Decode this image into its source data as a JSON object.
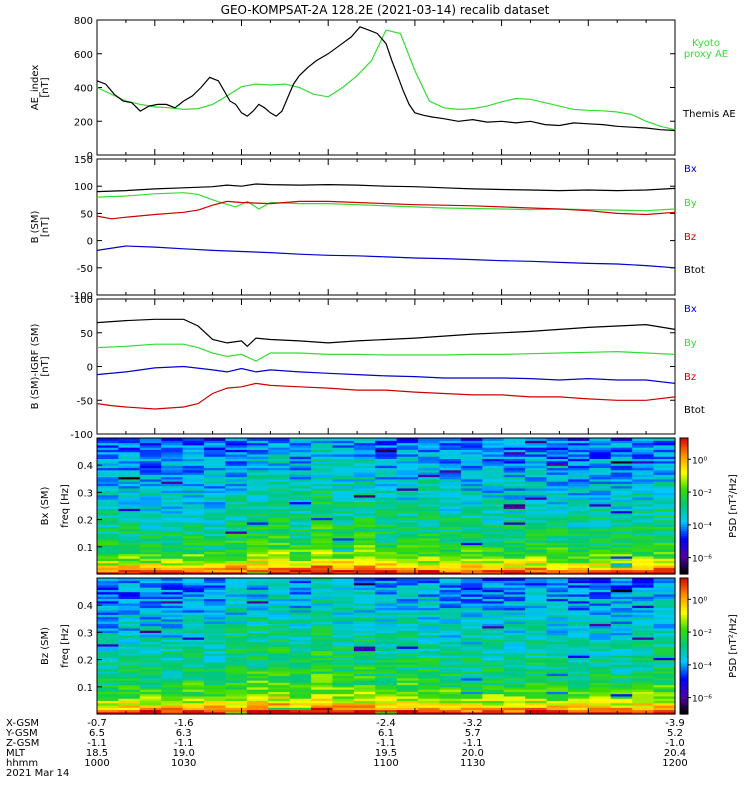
{
  "title": "GEO-KOMPSAT-2A 128.2E (2021-03-14) recalib dataset",
  "colors": {
    "black": "#000000",
    "green": "#33dd33",
    "red": "#cc0000",
    "blue": "#0000cc"
  },
  "colorbar": {
    "label": "PSD [nT²/Hz]",
    "ticks": [
      "10⁰",
      "10⁻²",
      "10⁻⁴",
      "10⁻⁶"
    ],
    "range_log10": [
      -7,
      1.3
    ]
  },
  "chart_data": [
    {
      "type": "line",
      "ylabel": "AE_index [nT]",
      "ylim": [
        0,
        800
      ],
      "yticks": [
        "0",
        "200",
        "400",
        "600",
        "800"
      ],
      "xlim": [
        1000,
        1200
      ],
      "legend": [
        {
          "label": "Kyoto proxy AE",
          "color": "#33dd33"
        },
        {
          "label": "Themis AE",
          "color": "#000000"
        }
      ],
      "series": [
        {
          "name": "Kyoto proxy AE",
          "color": "#33dd33",
          "x": [
            1000,
            1005,
            1010,
            1015,
            1020,
            1025,
            1030,
            1035,
            1040,
            1045,
            1050,
            1055,
            1060,
            1065,
            1070,
            1075,
            1080,
            1085,
            1090,
            1095,
            1100,
            1105,
            1110,
            1115,
            1120,
            1125,
            1130,
            1135,
            1140,
            1145,
            1150,
            1155,
            1160,
            1165,
            1170,
            1175,
            1180,
            1185,
            1190,
            1195,
            1200
          ],
          "y": [
            400,
            360,
            320,
            300,
            285,
            280,
            270,
            275,
            300,
            350,
            405,
            420,
            415,
            420,
            400,
            360,
            345,
            400,
            470,
            560,
            740,
            720,
            500,
            320,
            280,
            270,
            275,
            290,
            315,
            335,
            330,
            310,
            290,
            270,
            265,
            262,
            255,
            240,
            200,
            170,
            150
          ]
        },
        {
          "name": "Themis AE",
          "color": "#000000",
          "x": [
            1000,
            1003,
            1006,
            1009,
            1012,
            1015,
            1018,
            1021,
            1024,
            1027,
            1030,
            1033,
            1036,
            1039,
            1042,
            1044,
            1046,
            1048,
            1050,
            1052,
            1054,
            1056,
            1058,
            1060,
            1062,
            1064,
            1066,
            1068,
            1070,
            1073,
            1076,
            1080,
            1084,
            1088,
            1091,
            1094,
            1097,
            1100,
            1102,
            1104,
            1106,
            1108,
            1110,
            1113,
            1116,
            1120,
            1125,
            1130,
            1135,
            1140,
            1145,
            1150,
            1155,
            1160,
            1165,
            1170,
            1175,
            1180,
            1185,
            1190,
            1195,
            1200
          ],
          "y": [
            440,
            420,
            360,
            320,
            310,
            260,
            290,
            300,
            300,
            280,
            320,
            350,
            400,
            460,
            440,
            380,
            320,
            300,
            250,
            230,
            260,
            300,
            280,
            250,
            230,
            260,
            340,
            420,
            470,
            520,
            560,
            600,
            650,
            700,
            760,
            740,
            720,
            660,
            560,
            470,
            380,
            300,
            250,
            235,
            225,
            215,
            200,
            210,
            195,
            200,
            190,
            200,
            180,
            175,
            190,
            185,
            180,
            170,
            165,
            160,
            150,
            145
          ]
        }
      ]
    },
    {
      "type": "line",
      "ylabel": "B (SM) [nT]",
      "ylim": [
        -100,
        150
      ],
      "yticks": [
        "-100",
        "-50",
        "0",
        "50",
        "100",
        "150"
      ],
      "xlim": [
        1000,
        1200
      ],
      "legend": [
        {
          "label": "Bx",
          "color": "#0000cc"
        },
        {
          "label": "By",
          "color": "#33dd33"
        },
        {
          "label": "Bz",
          "color": "#cc0000"
        },
        {
          "label": "Btot",
          "color": "#000000"
        }
      ],
      "series": [
        {
          "name": "Btot",
          "color": "#000000",
          "x": [
            1000,
            1010,
            1020,
            1030,
            1040,
            1045,
            1050,
            1055,
            1060,
            1070,
            1080,
            1090,
            1100,
            1110,
            1120,
            1130,
            1140,
            1150,
            1160,
            1170,
            1180,
            1190,
            1200
          ],
          "y": [
            90,
            92,
            95,
            97,
            99,
            102,
            100,
            104,
            103,
            102,
            103,
            102,
            100,
            99,
            97,
            95,
            94,
            93,
            92,
            93,
            92,
            93,
            96
          ]
        },
        {
          "name": "By",
          "color": "#33dd33",
          "x": [
            1000,
            1010,
            1020,
            1030,
            1035,
            1040,
            1044,
            1048,
            1052,
            1056,
            1060,
            1070,
            1080,
            1090,
            1100,
            1110,
            1120,
            1130,
            1140,
            1150,
            1160,
            1170,
            1180,
            1190,
            1200
          ],
          "y": [
            80,
            82,
            86,
            88,
            85,
            75,
            68,
            62,
            72,
            58,
            70,
            68,
            68,
            66,
            64,
            62,
            60,
            59,
            58,
            57,
            58,
            57,
            56,
            55,
            58
          ]
        },
        {
          "name": "Bz",
          "color": "#cc0000",
          "x": [
            1000,
            1005,
            1010,
            1020,
            1030,
            1035,
            1040,
            1045,
            1050,
            1060,
            1070,
            1080,
            1090,
            1100,
            1110,
            1120,
            1130,
            1140,
            1150,
            1160,
            1170,
            1180,
            1190,
            1200
          ],
          "y": [
            45,
            40,
            43,
            48,
            52,
            56,
            65,
            72,
            70,
            68,
            72,
            72,
            70,
            68,
            66,
            65,
            64,
            62,
            60,
            58,
            55,
            50,
            48,
            52
          ]
        },
        {
          "name": "Bx",
          "color": "#0000cc",
          "x": [
            1000,
            1010,
            1020,
            1030,
            1040,
            1050,
            1060,
            1070,
            1080,
            1090,
            1100,
            1110,
            1120,
            1130,
            1140,
            1150,
            1160,
            1170,
            1180,
            1190,
            1200
          ],
          "y": [
            -18,
            -10,
            -12,
            -15,
            -18,
            -20,
            -22,
            -25,
            -27,
            -28,
            -30,
            -32,
            -33,
            -35,
            -37,
            -38,
            -40,
            -42,
            -43,
            -46,
            -50
          ]
        }
      ]
    },
    {
      "type": "line",
      "ylabel": "B (SM)-IGRF (SM) [nT]",
      "ylim": [
        -100,
        100
      ],
      "yticks": [
        "-100",
        "-50",
        "0",
        "50",
        "100"
      ],
      "xlim": [
        1000,
        1200
      ],
      "legend": [
        {
          "label": "Bx",
          "color": "#0000cc"
        },
        {
          "label": "By",
          "color": "#33dd33"
        },
        {
          "label": "Bz",
          "color": "#cc0000"
        },
        {
          "label": "Btot",
          "color": "#000000"
        }
      ],
      "series": [
        {
          "name": "Btot",
          "color": "#000000",
          "x": [
            1000,
            1010,
            1020,
            1030,
            1035,
            1040,
            1045,
            1050,
            1052,
            1055,
            1060,
            1070,
            1080,
            1090,
            1100,
            1110,
            1120,
            1130,
            1140,
            1150,
            1160,
            1170,
            1180,
            1190,
            1200
          ],
          "y": [
            65,
            68,
            70,
            70,
            60,
            40,
            35,
            38,
            30,
            42,
            40,
            38,
            35,
            38,
            40,
            42,
            45,
            48,
            50,
            52,
            55,
            58,
            60,
            62,
            55
          ]
        },
        {
          "name": "By",
          "color": "#33dd33",
          "x": [
            1000,
            1010,
            1020,
            1030,
            1035,
            1040,
            1045,
            1050,
            1055,
            1060,
            1070,
            1080,
            1090,
            1100,
            1110,
            1120,
            1130,
            1140,
            1150,
            1160,
            1170,
            1180,
            1190,
            1200
          ],
          "y": [
            28,
            30,
            33,
            33,
            28,
            20,
            15,
            18,
            8,
            20,
            20,
            18,
            18,
            17,
            17,
            17,
            18,
            18,
            19,
            20,
            21,
            22,
            20,
            18
          ]
        },
        {
          "name": "Bx",
          "color": "#0000cc",
          "x": [
            1000,
            1010,
            1020,
            1030,
            1040,
            1045,
            1050,
            1055,
            1060,
            1070,
            1080,
            1090,
            1100,
            1110,
            1120,
            1130,
            1140,
            1150,
            1160,
            1170,
            1180,
            1190,
            1200
          ],
          "y": [
            -12,
            -8,
            -2,
            0,
            -5,
            -8,
            -3,
            -8,
            -5,
            -8,
            -10,
            -12,
            -14,
            -15,
            -17,
            -17,
            -17,
            -18,
            -20,
            -18,
            -20,
            -20,
            -25
          ]
        },
        {
          "name": "Bz",
          "color": "#cc0000",
          "x": [
            1000,
            1005,
            1010,
            1020,
            1030,
            1035,
            1040,
            1045,
            1050,
            1055,
            1060,
            1070,
            1080,
            1090,
            1100,
            1110,
            1120,
            1130,
            1140,
            1150,
            1160,
            1170,
            1180,
            1190,
            1200
          ],
          "y": [
            -55,
            -58,
            -60,
            -63,
            -60,
            -55,
            -40,
            -32,
            -30,
            -25,
            -28,
            -30,
            -32,
            -35,
            -35,
            -38,
            -40,
            -42,
            -42,
            -45,
            -45,
            -48,
            -50,
            -50,
            -45
          ]
        }
      ]
    },
    {
      "type": "heatmap",
      "ylabel": "Bx (SM) freq [Hz]",
      "ylim": [
        0,
        0.5
      ],
      "yticks": [
        "0.1",
        "0.2",
        "0.3",
        "0.4"
      ],
      "xlim": [
        1000,
        1200
      ],
      "time_bins": 27,
      "freq_bins": 60,
      "time_boost": [
        0.3,
        0.4,
        0.2,
        0.3,
        0.4,
        0.2,
        0.5,
        0.8,
        1.0,
        0.6,
        1.2,
        0.7,
        0.9,
        0.5,
        0.6,
        0.7,
        0.5,
        0.4,
        0.4,
        0.3,
        0.5,
        0.4,
        0.3,
        0.4,
        0.3,
        0.5,
        0.6
      ]
    },
    {
      "type": "heatmap",
      "ylabel": "Bz (SM) freq [Hz]",
      "ylim": [
        0,
        0.5
      ],
      "yticks": [
        "0.1",
        "0.2",
        "0.3",
        "0.4"
      ],
      "xlim": [
        1000,
        1200
      ],
      "time_bins": 27,
      "freq_bins": 60,
      "time_boost": [
        0.3,
        0.4,
        0.5,
        0.4,
        0.6,
        0.5,
        0.9,
        1.1,
        1.2,
        0.8,
        1.3,
        0.9,
        1.0,
        0.7,
        0.8,
        0.8,
        0.6,
        0.5,
        0.5,
        0.4,
        0.6,
        0.5,
        0.4,
        0.5,
        0.4,
        0.6,
        0.7
      ]
    }
  ],
  "ephemeris": {
    "labels": [
      "X-GSM",
      "Y-GSM",
      "Z-GSM",
      "MLT",
      "hhmm",
      "2021 Mar 14"
    ],
    "x": [
      1000,
      1030,
      1100,
      1130,
      1200
    ],
    "columns": [
      [
        "-0.7",
        "6.5",
        "-1.1",
        "18.5",
        "1000"
      ],
      [
        "-1.6",
        "6.3",
        "-1.1",
        "19.0",
        "1030"
      ],
      [
        "-2.4",
        "6.1",
        "-1.1",
        "19.5",
        "1100"
      ],
      [
        "-3.2",
        "5.7",
        "-1.1",
        "20.0",
        "1130"
      ],
      [
        "-3.9",
        "5.2",
        "-1.0",
        "20.4",
        "1200"
      ]
    ]
  }
}
